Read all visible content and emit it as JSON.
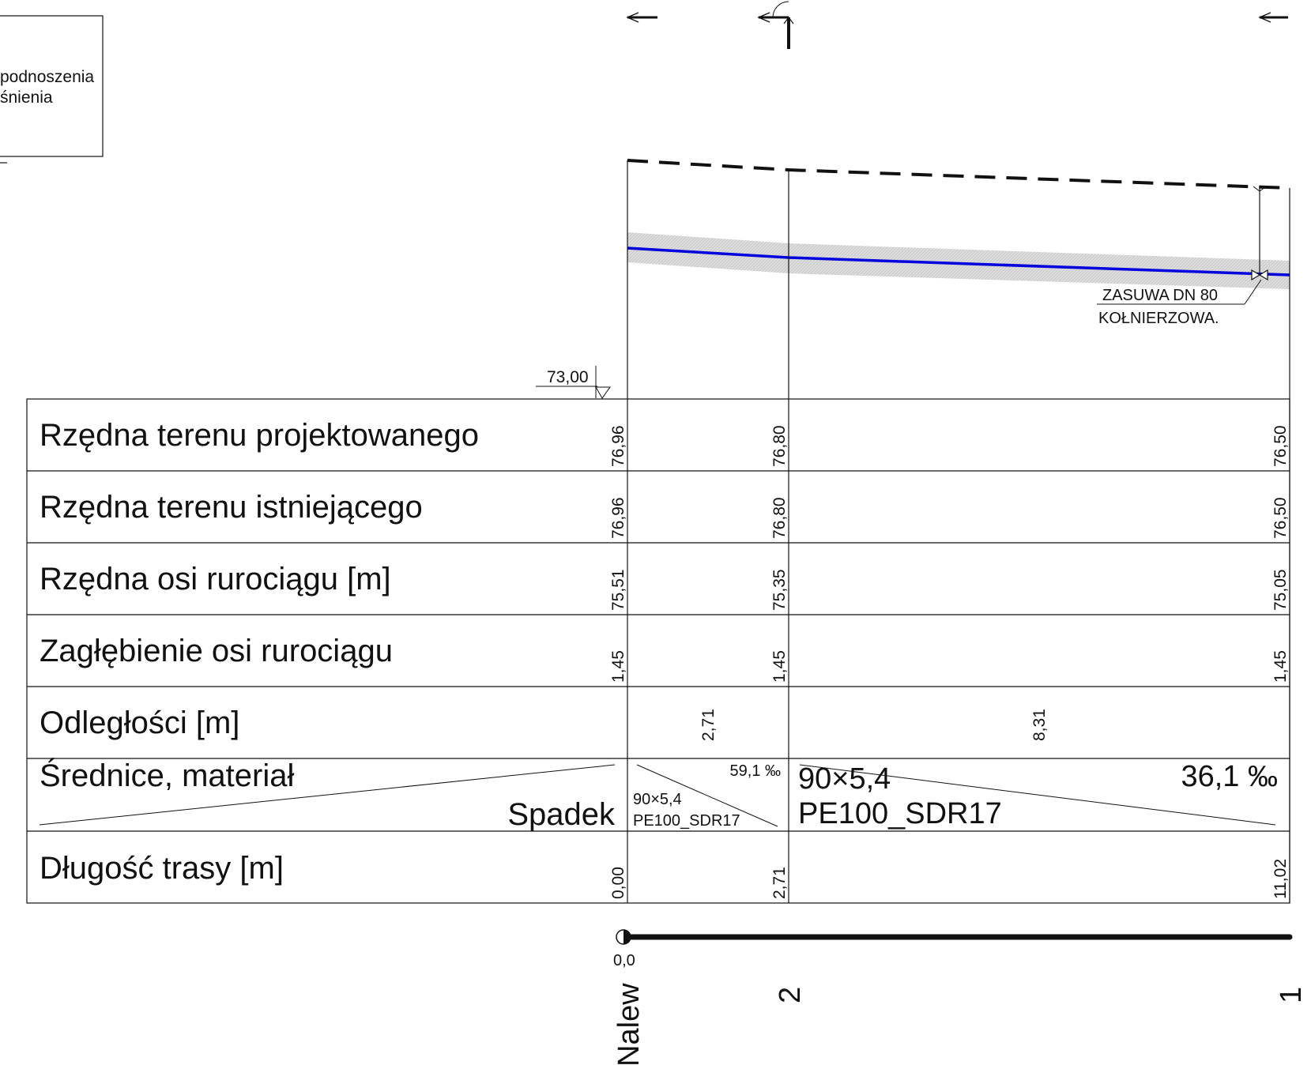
{
  "legend": {
    "line1": "podnoszenia",
    "line2": "śnienia"
  },
  "profile": {
    "datum_label": "73,00",
    "valve_label_line1": "ZASUWA DN 80",
    "valve_label_line2": "KOŁNIERZOWA.",
    "pipe_color": "#0000dd",
    "trench_color": "#cccccc"
  },
  "table": {
    "rows": [
      {
        "label": "Rzędna terenu projektowanego",
        "values": [
          "76,96",
          "76,80",
          "76,50"
        ]
      },
      {
        "label": "Rzędna terenu istniejącego",
        "values": [
          "76,96",
          "76,80",
          "76,50"
        ]
      },
      {
        "label": "Rzędna osi rurociągu [m]",
        "values": [
          "75,51",
          "75,35",
          "75,05"
        ]
      },
      {
        "label": "Zagłębienie osi rurociągu",
        "values": [
          "1,45",
          "1,45",
          "1,45"
        ]
      }
    ],
    "distances": {
      "label": "Odległości [m]",
      "values": [
        "2,71",
        "8,31"
      ]
    },
    "diameter": {
      "label_top": "Średnice, materiał",
      "label_bottom": "Spadek",
      "segments": [
        {
          "dim": "90×5,4",
          "material": "PE100_SDR17",
          "slope": "59,1 ‰"
        },
        {
          "dim": "90×5,4",
          "material": "PE100_SDR17",
          "slope": "36,1 ‰"
        }
      ]
    },
    "length": {
      "label": "Długość trasy [m]",
      "values": [
        "0,00",
        "2,71",
        "11,02"
      ]
    }
  },
  "scale": {
    "zero_label": "0,0"
  },
  "nodes": {
    "start": "Nalew",
    "middle": "2",
    "end": "1"
  }
}
